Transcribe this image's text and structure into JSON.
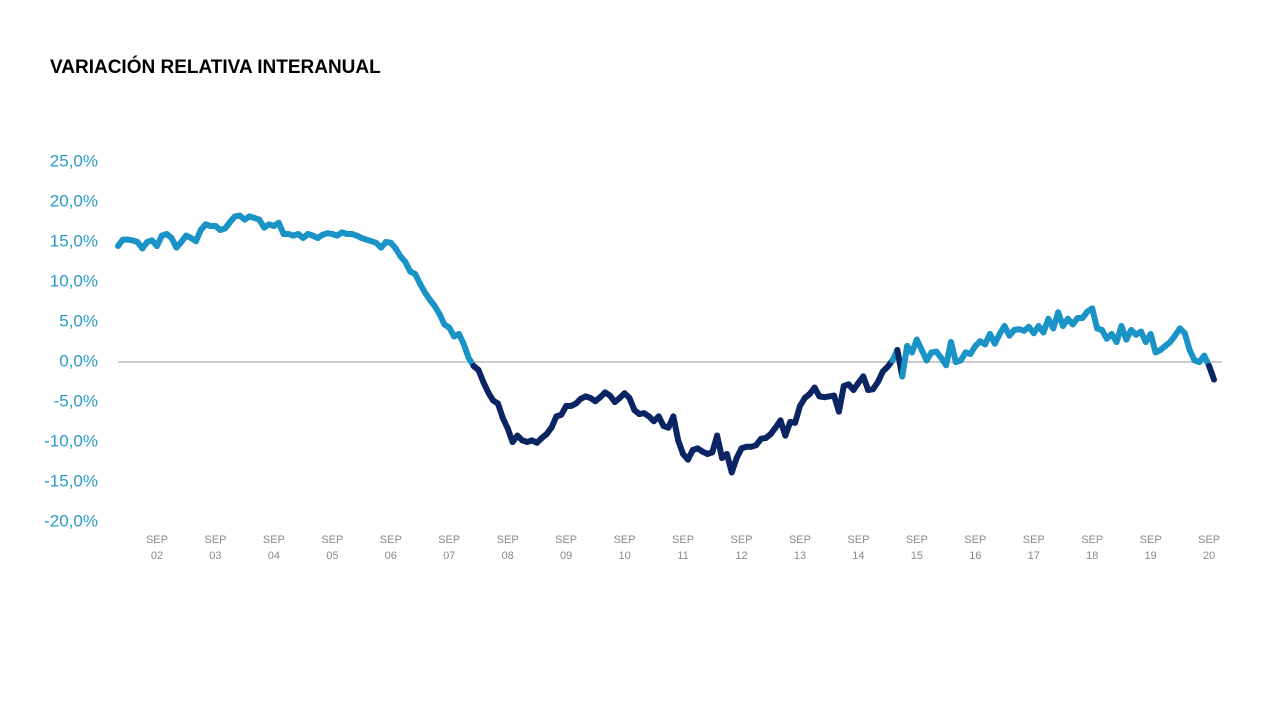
{
  "chart_data": {
    "type": "line",
    "title": "VARIACIÓN RELATIVA INTERANUAL",
    "categories": [
      null,
      null,
      null,
      null,
      null,
      null,
      null,
      null,
      "SEP 02",
      null,
      null,
      null,
      null,
      null,
      null,
      null,
      null,
      null,
      null,
      null,
      "SEP 03",
      null,
      null,
      null,
      null,
      null,
      null,
      null,
      null,
      null,
      null,
      null,
      "SEP 04",
      null,
      null,
      null,
      null,
      null,
      null,
      null,
      null,
      null,
      null,
      null,
      "SEP 05",
      null,
      null,
      null,
      null,
      null,
      null,
      null,
      null,
      null,
      null,
      null,
      "SEP 06",
      null,
      null,
      null,
      null,
      null,
      null,
      null,
      null,
      null,
      null,
      null,
      "SEP 07",
      null,
      null,
      null,
      null,
      null,
      null,
      null,
      null,
      null,
      null,
      null,
      "SEP 08",
      null,
      null,
      null,
      null,
      null,
      null,
      null,
      null,
      null,
      null,
      null,
      "SEP 09",
      null,
      null,
      null,
      null,
      null,
      null,
      null,
      null,
      null,
      null,
      null,
      "SEP 10",
      null,
      null,
      null,
      null,
      null,
      null,
      null,
      null,
      null,
      null,
      null,
      "SEP 11",
      null,
      null,
      null,
      null,
      null,
      null,
      null,
      null,
      null,
      null,
      null,
      "SEP 12",
      null,
      null,
      null,
      null,
      null,
      null,
      null,
      null,
      null,
      null,
      null,
      "SEP 13",
      null,
      null,
      null,
      null,
      null,
      null,
      null,
      null,
      null,
      null,
      null,
      "SEP 14",
      null,
      null,
      null,
      null,
      null,
      null,
      null,
      null,
      null,
      null,
      null,
      "SEP 15",
      null,
      null,
      null,
      null,
      null,
      null,
      null,
      null,
      null,
      null,
      null,
      "SEP 16",
      null,
      null,
      null,
      null,
      null,
      null,
      null,
      null,
      null,
      null,
      null,
      "SEP 17",
      null,
      null,
      null,
      null,
      null,
      null,
      null,
      null,
      null,
      null,
      null,
      "SEP 18",
      null,
      null,
      null,
      null,
      null,
      null,
      null,
      null,
      null,
      null,
      null,
      "SEP 19",
      null,
      null,
      null,
      null,
      null,
      null,
      null,
      null,
      null,
      null,
      null,
      "SEP 20",
      null
    ],
    "values": [
      14.5,
      15.3,
      15.3,
      15.2,
      15,
      14.2,
      15,
      15.2,
      14.5,
      15.8,
      16,
      15.5,
      14.3,
      15,
      15.8,
      15.5,
      15.1,
      16.5,
      17.2,
      17,
      17,
      16.5,
      16.7,
      17.5,
      18.2,
      18.3,
      17.8,
      18.2,
      18,
      17.8,
      16.8,
      17.2,
      17,
      17.4,
      16,
      16,
      15.8,
      16,
      15.5,
      16,
      15.8,
      15.5,
      15.9,
      16.1,
      16,
      15.8,
      16.2,
      16,
      16,
      15.8,
      15.5,
      15.3,
      15.1,
      14.9,
      14.3,
      15,
      14.9,
      14.2,
      13.2,
      12.5,
      11.3,
      11,
      9.8,
      8.7,
      7.8,
      7,
      6,
      4.7,
      4.3,
      3.2,
      3.5,
      2.2,
      0.5,
      -0.5,
      -1,
      -2.5,
      -3.8,
      -4.8,
      -5.2,
      -7,
      -8.3,
      -10,
      -9.2,
      -9.8,
      -10,
      -9.8,
      -10.1,
      -9.5,
      -9,
      -8.2,
      -6.8,
      -6.6,
      -5.5,
      -5.5,
      -5.2,
      -4.6,
      -4.3,
      -4.5,
      -4.9,
      -4.4,
      -3.8,
      -4.2,
      -5,
      -4.5,
      -3.9,
      -4.5,
      -6,
      -6.5,
      -6.4,
      -6.8,
      -7.4,
      -6.8,
      -8,
      -8.2,
      -6.8,
      -9.8,
      -11.5,
      -12.2,
      -11,
      -10.8,
      -11.2,
      -11.5,
      -11.3,
      -9.2,
      -12,
      -11.5,
      -13.8,
      -12,
      -10.8,
      -10.6,
      -10.6,
      -10.4,
      -9.6,
      -9.5,
      -9,
      -8.2,
      -7.3,
      -9.2,
      -7.5,
      -7.6,
      -5.5,
      -4.5,
      -4,
      -3.2,
      -4.3,
      -4.4,
      -4.3,
      -4.2,
      -6.2,
      -3,
      -2.8,
      -3.5,
      -2.6,
      -1.8,
      -3.5,
      -3.4,
      -2.5,
      -1.2,
      -0.6,
      0.2,
      1.5,
      -1.8,
      2,
      1.2,
      2.8,
      1.5,
      0.2,
      1.2,
      1.3,
      0.5,
      -0.4,
      2.5,
      0,
      0.2,
      1.2,
      1,
      2,
      2.6,
      2.2,
      3.5,
      2.3,
      3.5,
      4.5,
      3.3,
      4,
      4.1,
      3.9,
      4.4,
      3.6,
      4.5,
      3.7,
      5.4,
      4.2,
      6.2,
      4.5,
      5.4,
      4.7,
      5.5,
      5.5,
      6.3,
      6.7,
      4.2,
      4,
      2.9,
      3.5,
      2.5,
      4.5,
      2.8,
      4,
      3.4,
      3.8,
      2.5,
      3.5,
      1.2,
      1.5,
      2,
      2.5,
      3.3,
      4.2,
      3.6,
      1.5,
      0.2,
      0,
      0.8,
      -0.5,
      -2.2
    ],
    "color": "#1a93c6",
    "negative_color": "#0b2463",
    "ylim": [
      -20,
      25
    ],
    "yticks": [
      {
        "value": -20,
        "label": "-20,0%"
      },
      {
        "value": -15,
        "label": "-15,0%"
      },
      {
        "value": -10,
        "label": "-10,0%"
      },
      {
        "value": -5,
        "label": "-5,0%"
      },
      {
        "value": 0,
        "label": "0,0%"
      },
      {
        "value": 5,
        "label": "5,0%"
      },
      {
        "value": 10,
        "label": "10,0%"
      },
      {
        "value": 15,
        "label": "15,0%"
      },
      {
        "value": 20,
        "label": "20,0%"
      },
      {
        "value": 25,
        "label": "25,0%"
      }
    ]
  }
}
